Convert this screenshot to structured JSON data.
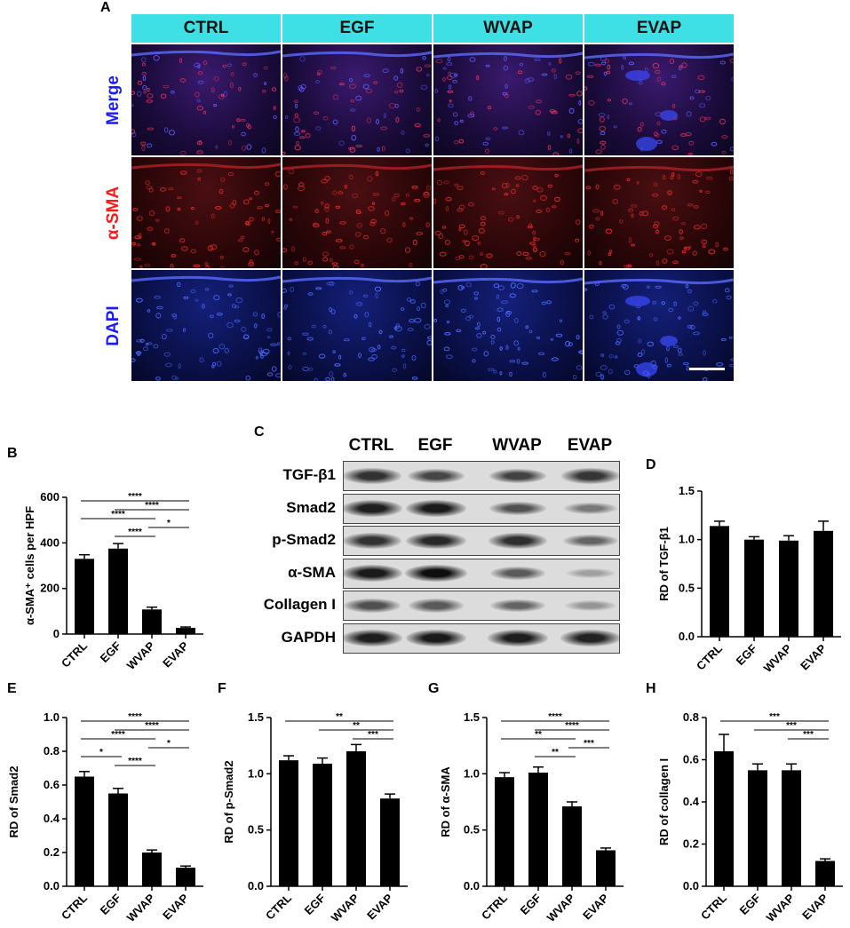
{
  "panelA": {
    "letter": "A",
    "columns": [
      "CTRL",
      "EGF",
      "WVAP",
      "EVAP"
    ],
    "rows": [
      {
        "label": "Merge",
        "color": "#1a1aff",
        "stain": "merge"
      },
      {
        "label": "α-SMA",
        "color": "#ff1a1a",
        "stain": "red"
      },
      {
        "label": "DAPI",
        "color": "#1a1aff",
        "stain": "blue"
      }
    ],
    "header_color": "#3ee0e6"
  },
  "panelC": {
    "letter": "C",
    "lanes": [
      "CTRL",
      "EGF",
      "WVAP",
      "EVAP"
    ],
    "rows": [
      {
        "label": "TGF-β1",
        "intensity": [
          0.8,
          0.7,
          0.72,
          0.78
        ]
      },
      {
        "label": "Smad2",
        "intensity": [
          0.9,
          0.92,
          0.65,
          0.45
        ]
      },
      {
        "label": "p-Smad2",
        "intensity": [
          0.8,
          0.85,
          0.82,
          0.55
        ]
      },
      {
        "label": "α-SMA",
        "intensity": [
          0.92,
          0.98,
          0.6,
          0.25
        ]
      },
      {
        "label": "Collagen I",
        "intensity": [
          0.65,
          0.6,
          0.55,
          0.3
        ]
      },
      {
        "label": "GAPDH",
        "intensity": [
          0.9,
          0.92,
          0.9,
          0.88
        ]
      }
    ]
  },
  "chart_data": [
    {
      "id": "B",
      "letter": "B",
      "type": "bar",
      "categories": [
        "CTRL",
        "EGF",
        "WVAP",
        "EVAP"
      ],
      "values": [
        330,
        375,
        108,
        27
      ],
      "errors": [
        18,
        22,
        10,
        4
      ],
      "ylabel": "α-SMA⁺ cells per HPF",
      "ylim": [
        0,
        600
      ],
      "yticks": [
        "0",
        "200",
        "400",
        "600"
      ],
      "brackets": [
        {
          "from": 0,
          "to": 3,
          "label": "****"
        },
        {
          "from": 0,
          "to": 2,
          "label": "****"
        },
        {
          "from": 1,
          "to": 3,
          "label": "****"
        },
        {
          "from": 1,
          "to": 2,
          "label": "****"
        },
        {
          "from": 2,
          "to": 3,
          "label": "*"
        }
      ]
    },
    {
      "id": "D",
      "letter": "D",
      "type": "bar",
      "categories": [
        "CTRL",
        "EGF",
        "WVAP",
        "EVAP"
      ],
      "values": [
        1.14,
        1.0,
        0.99,
        1.09
      ],
      "errors": [
        0.05,
        0.03,
        0.05,
        0.1
      ],
      "ylabel": "RD of TGF-β1",
      "ylim": [
        0,
        1.5
      ],
      "yticks": [
        "0.0",
        "0.5",
        "1.0",
        "1.5"
      ],
      "brackets": []
    },
    {
      "id": "E",
      "letter": "E",
      "type": "bar",
      "categories": [
        "CTRL",
        "EGF",
        "WVAP",
        "EVAP"
      ],
      "values": [
        0.65,
        0.55,
        0.2,
        0.11
      ],
      "errors": [
        0.03,
        0.03,
        0.015,
        0.01
      ],
      "ylabel": "RD of Smad2",
      "ylim": [
        0,
        1.0
      ],
      "yticks": [
        "0.0",
        "0.2",
        "0.4",
        "0.6",
        "0.8",
        "1.0"
      ],
      "brackets": [
        {
          "from": 0,
          "to": 3,
          "label": "****"
        },
        {
          "from": 0,
          "to": 2,
          "label": "****"
        },
        {
          "from": 1,
          "to": 2,
          "label": "****"
        },
        {
          "from": 0,
          "to": 1,
          "label": "*"
        },
        {
          "from": 1,
          "to": 3,
          "label": "****"
        },
        {
          "from": 2,
          "to": 3,
          "label": "*"
        }
      ]
    },
    {
      "id": "F",
      "letter": "F",
      "type": "bar",
      "categories": [
        "CTRL",
        "EGF",
        "WVAP",
        "EVAP"
      ],
      "values": [
        1.12,
        1.09,
        1.2,
        0.78
      ],
      "errors": [
        0.04,
        0.05,
        0.06,
        0.04
      ],
      "ylabel": "RD of p-Smad2",
      "ylim": [
        0,
        1.5
      ],
      "yticks": [
        "0.0",
        "0.5",
        "1.0",
        "1.5"
      ],
      "brackets": [
        {
          "from": 0,
          "to": 3,
          "label": "**"
        },
        {
          "from": 1,
          "to": 3,
          "label": "**"
        },
        {
          "from": 2,
          "to": 3,
          "label": "***"
        }
      ]
    },
    {
      "id": "G",
      "letter": "G",
      "type": "bar",
      "categories": [
        "CTRL",
        "EGF",
        "WVAP",
        "EVAP"
      ],
      "values": [
        0.97,
        1.01,
        0.71,
        0.32
      ],
      "errors": [
        0.04,
        0.05,
        0.04,
        0.02
      ],
      "ylabel": "RD of α-SMA",
      "ylim": [
        0,
        1.5
      ],
      "yticks": [
        "0.0",
        "0.5",
        "1.0",
        "1.5"
      ],
      "brackets": [
        {
          "from": 0,
          "to": 3,
          "label": "****"
        },
        {
          "from": 0,
          "to": 2,
          "label": "**"
        },
        {
          "from": 1,
          "to": 3,
          "label": "****"
        },
        {
          "from": 1,
          "to": 2,
          "label": "**"
        },
        {
          "from": 2,
          "to": 3,
          "label": "***"
        }
      ]
    },
    {
      "id": "H",
      "letter": "H",
      "type": "bar",
      "categories": [
        "CTRL",
        "EGF",
        "WVAP",
        "EVAP"
      ],
      "values": [
        0.64,
        0.55,
        0.55,
        0.12
      ],
      "errors": [
        0.08,
        0.03,
        0.03,
        0.01
      ],
      "ylabel": "RD of collagen I",
      "ylim": [
        0,
        0.8
      ],
      "yticks": [
        "0.0",
        "0.2",
        "0.4",
        "0.6",
        "0.8"
      ],
      "brackets": [
        {
          "from": 0,
          "to": 3,
          "label": "***"
        },
        {
          "from": 1,
          "to": 3,
          "label": "***"
        },
        {
          "from": 2,
          "to": 3,
          "label": "***"
        }
      ]
    }
  ]
}
